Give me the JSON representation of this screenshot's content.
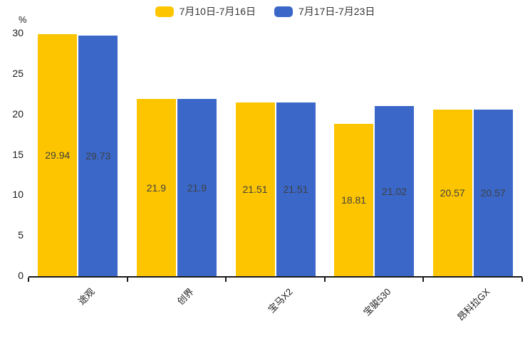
{
  "chart_data": {
    "type": "bar",
    "categories": [
      "途观",
      "创界",
      "宝马X2",
      "宝骏530",
      "昂科拉GX"
    ],
    "series": [
      {
        "name": "7月10日-7月16日",
        "color": "#FDC500",
        "values": [
          29.94,
          21.9,
          21.51,
          18.81,
          20.57
        ],
        "labels": [
          "29.94",
          "21.9",
          "21.51",
          "18.81",
          "20.57"
        ]
      },
      {
        "name": "7月17日-7月23日",
        "color": "#3A67C8",
        "values": [
          29.73,
          21.9,
          21.51,
          21.02,
          20.57
        ],
        "labels": [
          "29.73",
          "21.9",
          "21.51",
          "21.02",
          "20.57"
        ]
      }
    ],
    "title": "",
    "xlabel": "",
    "ylabel": "%",
    "ylim": [
      0,
      30
    ],
    "yticks": [
      0,
      5,
      10,
      15,
      20,
      25,
      30
    ],
    "legend_position": "top-center",
    "grid": false,
    "label_color": "#404040",
    "axis_color": "#1a1a1a"
  }
}
